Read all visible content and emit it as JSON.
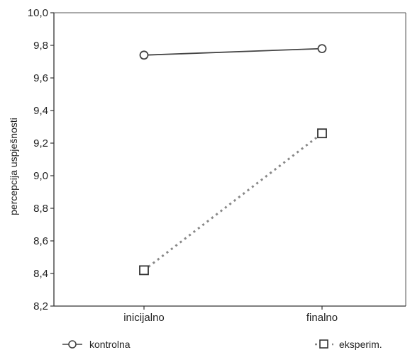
{
  "chart_data": {
    "type": "line",
    "title": "",
    "xlabel": "",
    "ylabel": "percepcija uspješnosti",
    "categories": [
      "inicijalno",
      "finalno"
    ],
    "ylim": [
      8.2,
      10.0
    ],
    "yticks": [
      "8,2",
      "8,4",
      "8,6",
      "8,8",
      "9,0",
      "9,2",
      "9,4",
      "9,6",
      "9,8",
      "10,0"
    ],
    "grid": false,
    "legend_position": "bottom",
    "series": [
      {
        "name": "kontrolna",
        "values": [
          9.74,
          9.78
        ],
        "marker": "circle",
        "line_style": "solid",
        "color": "#444444"
      },
      {
        "name": "eksperim.",
        "values": [
          8.42,
          9.26
        ],
        "marker": "square",
        "line_style": "dotted",
        "color": "#888888"
      }
    ]
  }
}
